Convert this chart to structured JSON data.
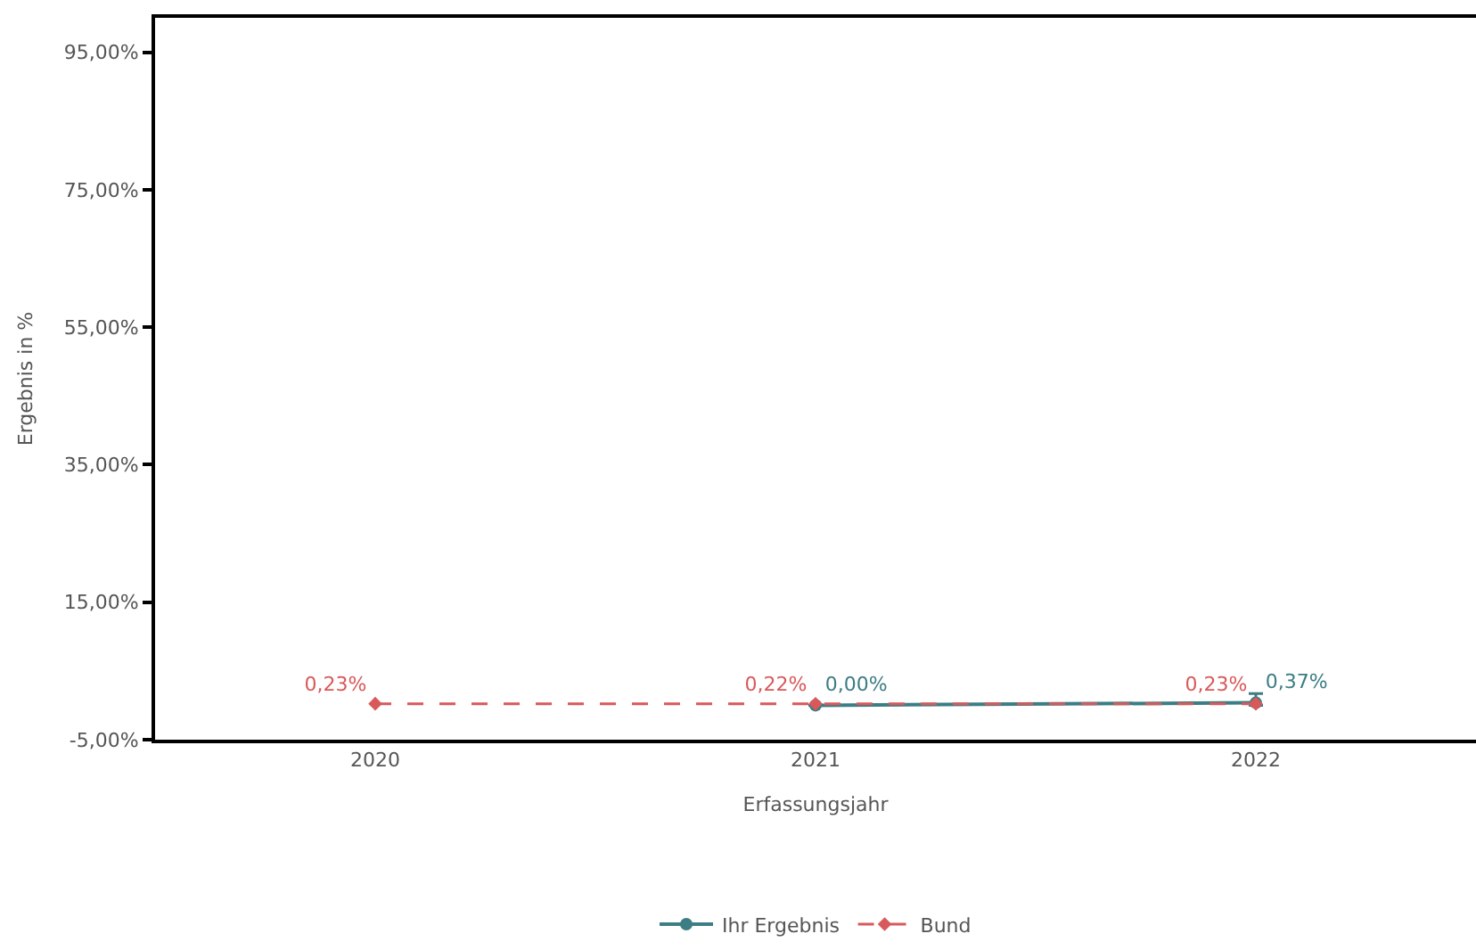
{
  "chart_data": {
    "type": "line",
    "xlabel": "Erfassungsjahr",
    "ylabel": "Ergebnis in %",
    "categories": [
      "2020",
      "2021",
      "2022"
    ],
    "series": [
      {
        "name": "Ihr Ergebnis",
        "color": "#3d7d84",
        "values": [
          null,
          0.0,
          0.37
        ],
        "value_labels": [
          null,
          "0,00%",
          "0,37%"
        ],
        "marker": "circle",
        "line_style": "solid",
        "errors": [
          null,
          null,
          [
            0.0,
            1.7
          ]
        ]
      },
      {
        "name": "Bund",
        "color": "#d9595a",
        "values": [
          0.23,
          0.22,
          0.23
        ],
        "value_labels": [
          "0,23%",
          "0,22%",
          "0,23%"
        ],
        "marker": "diamond",
        "line_style": "dashed"
      }
    ],
    "ylim": [
      -5,
      100
    ],
    "yticks": [
      {
        "value": -5,
        "label": "-5,00%"
      },
      {
        "value": 15,
        "label": "15,00%"
      },
      {
        "value": 35,
        "label": "35,00%"
      },
      {
        "value": 55,
        "label": "55,00%"
      },
      {
        "value": 75,
        "label": "75,00%"
      },
      {
        "value": 95,
        "label": "95,00%"
      }
    ],
    "legend": "bottom"
  }
}
